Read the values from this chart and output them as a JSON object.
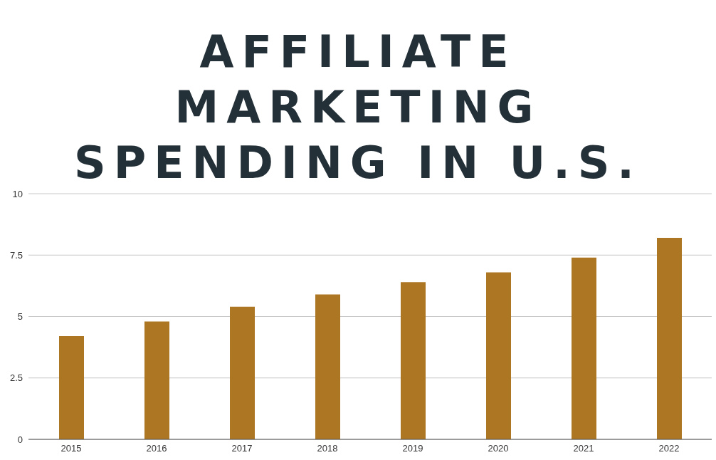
{
  "chart_data": {
    "type": "bar",
    "title": "AFFILIATE MARKETING SPENDING IN U.S.",
    "categories": [
      "2015",
      "2016",
      "2017",
      "2018",
      "2019",
      "2020",
      "2021",
      "2022"
    ],
    "values": [
      4.2,
      4.8,
      5.4,
      5.9,
      6.4,
      6.8,
      7.4,
      8.2
    ],
    "color": "#ad7623",
    "ylim": [
      0,
      10
    ],
    "yticks": [
      0,
      2.5,
      5,
      7.5,
      10
    ],
    "grid": "y"
  }
}
